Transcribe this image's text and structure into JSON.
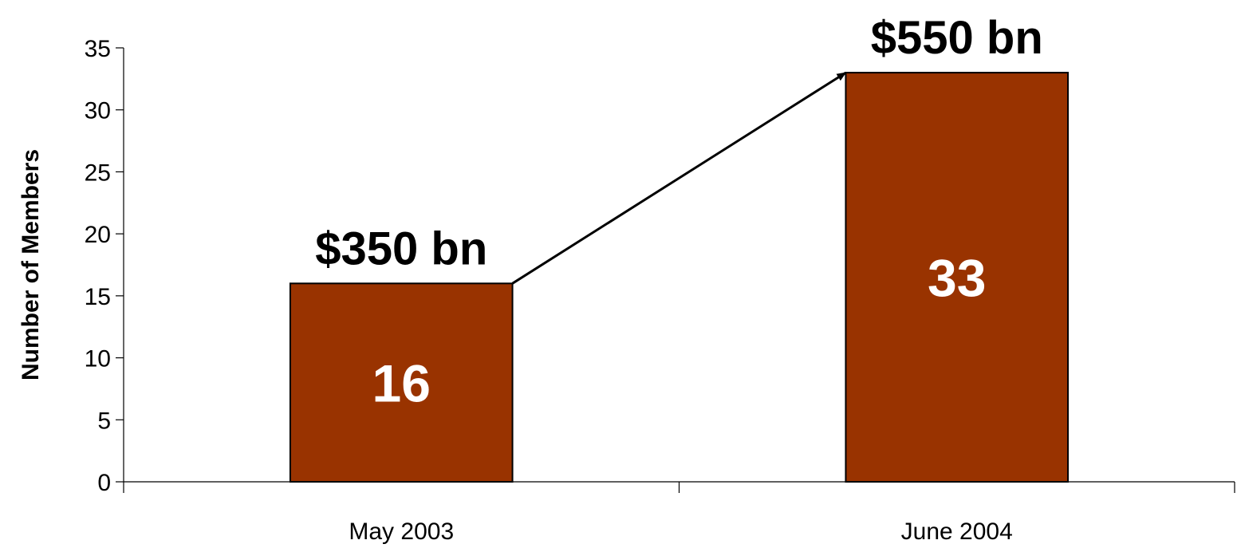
{
  "chart_data": {
    "type": "bar",
    "title": "",
    "xlabel": "",
    "ylabel": "Number of Members",
    "ylim": [
      0,
      35
    ],
    "yticks": [
      0,
      5,
      10,
      15,
      20,
      25,
      30,
      35
    ],
    "grid": false,
    "legend": "none",
    "categories": [
      "May 2003",
      "June 2004"
    ],
    "values": [
      16,
      33
    ],
    "value_labels": [
      "16",
      "33"
    ],
    "annotations": [
      "$350 bn",
      "$550 bn"
    ],
    "bar_color": "#993300",
    "arrow": {
      "from": "May 2003",
      "to": "June 2004"
    }
  }
}
